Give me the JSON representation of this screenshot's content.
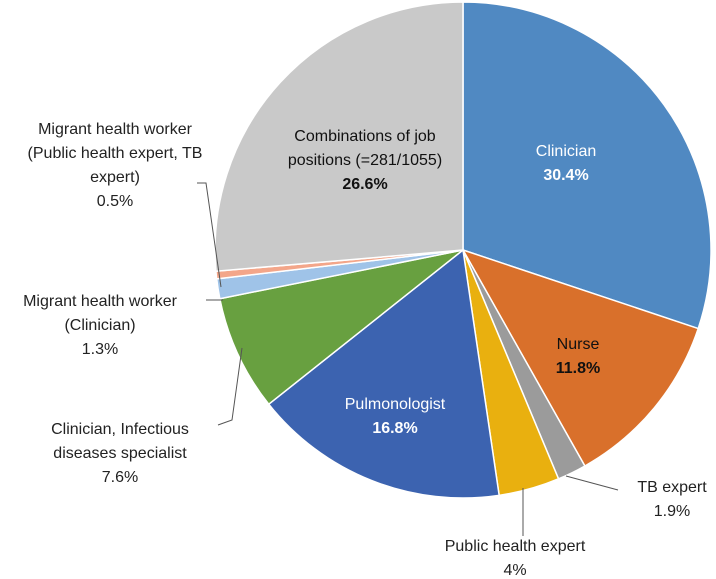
{
  "chart_data": {
    "type": "pie",
    "categories": [
      "Clinician",
      "Nurse",
      "TB expert",
      "Public health expert",
      "Pulmonologist",
      "Clinician, Infectious diseases specialist",
      "Migrant health worker (Clinician)",
      "Migrant health worker (Public health expert, TB expert)",
      "Combinations of job positions (=281/1055)"
    ],
    "values": [
      30.4,
      11.8,
      1.9,
      4,
      16.8,
      7.6,
      1.3,
      0.5,
      26.6
    ],
    "value_labels": [
      "30.4%",
      "11.8%",
      "1.9%",
      "4%",
      "16.8%",
      "7.6%",
      "1.3%",
      "0.5%",
      "26.6%"
    ],
    "colors": [
      "#5089c2",
      "#d9702b",
      "#9b9b9b",
      "#e9b00f",
      "#3c63b0",
      "#68a040",
      "#9fc3e8",
      "#f3a68a",
      "#c9c9c9"
    ]
  }
}
